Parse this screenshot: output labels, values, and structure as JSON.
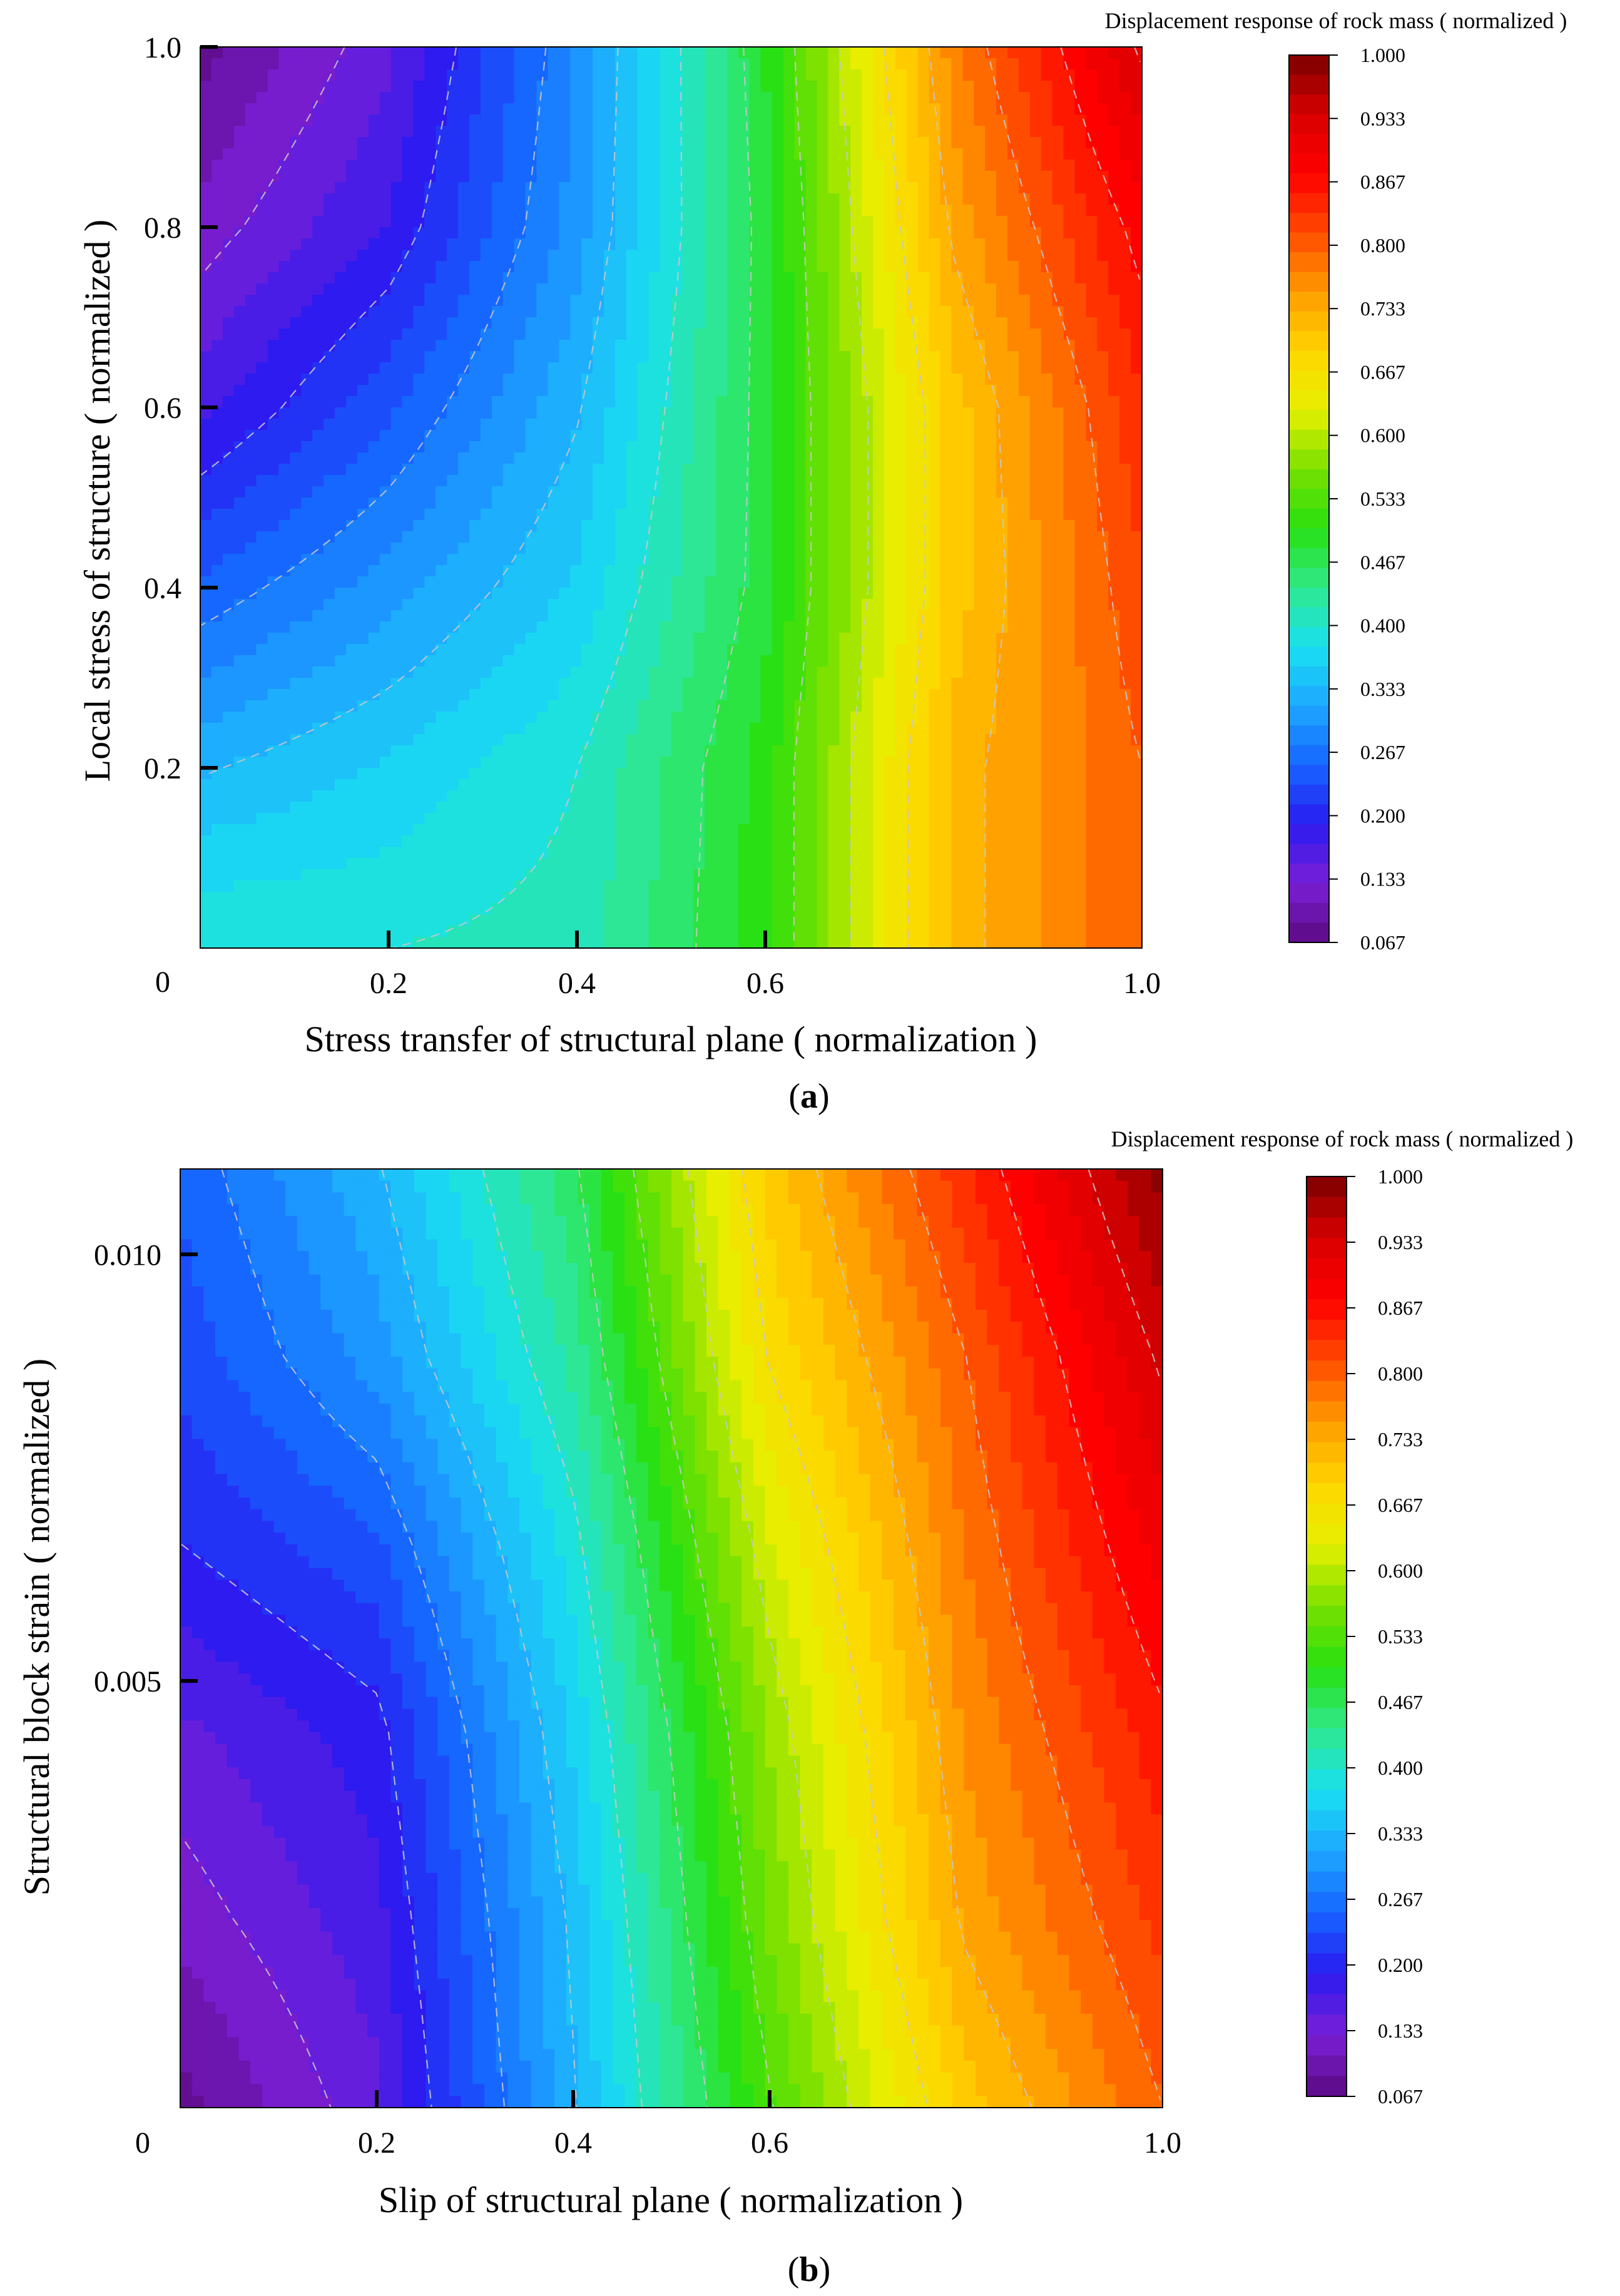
{
  "chart_data": [
    {
      "type": "heatmap",
      "panel_label": "a",
      "xlabel": "Stress transfer of structural plane ( normalization )",
      "ylabel": "Local stress of structure ( normalized )",
      "x_ticks": [
        "0.2",
        "0.4",
        "0.6",
        "1.0"
      ],
      "x_tick_values": [
        0.2,
        0.4,
        0.6,
        1.0
      ],
      "y_ticks": [
        "0.2",
        "0.4",
        "0.6",
        "0.8",
        "1.0"
      ],
      "y_tick_values": [
        0.2,
        0.4,
        0.6,
        0.8,
        1.0
      ],
      "origin_label": "0",
      "xlim": [
        0.0,
        1.0
      ],
      "ylim": [
        0.0,
        1.0
      ],
      "colorbar_title": "Displacement response of rock mass ( normalized )",
      "colorbar_ticks": [
        "1.000",
        "0.933",
        "0.867",
        "0.800",
        "0.733",
        "0.667",
        "0.600",
        "0.533",
        "0.467",
        "0.400",
        "0.333",
        "0.267",
        "0.200",
        "0.133",
        "0.067"
      ],
      "zlim": [
        0.067,
        1.0
      ],
      "z_grid": {
        "x": [
          0.0,
          0.2,
          0.4,
          0.6,
          0.8,
          1.0
        ],
        "y": [
          0.0,
          0.2,
          0.4,
          0.6,
          0.8,
          1.0
        ],
        "z": [
          [
            0.4,
            0.4,
            0.41,
            0.5,
            0.72,
            0.8
          ],
          [
            0.33,
            0.36,
            0.4,
            0.5,
            0.72,
            0.8
          ],
          [
            0.25,
            0.3,
            0.36,
            0.48,
            0.7,
            0.82
          ],
          [
            0.17,
            0.24,
            0.33,
            0.48,
            0.7,
            0.84
          ],
          [
            0.12,
            0.18,
            0.3,
            0.48,
            0.74,
            0.88
          ],
          [
            0.08,
            0.15,
            0.29,
            0.49,
            0.77,
            0.94
          ]
        ]
      }
    },
    {
      "type": "heatmap",
      "panel_label": "b",
      "xlabel": "Slip of structural plane ( normalization )",
      "ylabel": "Structural block strain ( normalized )",
      "x_ticks": [
        "0.2",
        "0.4",
        "0.6",
        "1.0"
      ],
      "x_tick_values": [
        0.2,
        0.4,
        0.6,
        1.0
      ],
      "y_ticks": [
        "0.005",
        "0.010"
      ],
      "y_tick_values": [
        0.005,
        0.01
      ],
      "origin_label": "0",
      "xlim": [
        0.0,
        1.0
      ],
      "ylim": [
        0.0,
        0.011
      ],
      "colorbar_title": "Displacement response of rock mass ( normalized )",
      "colorbar_ticks": [
        "1.000",
        "0.933",
        "0.867",
        "0.800",
        "0.733",
        "0.667",
        "0.600",
        "0.533",
        "0.467",
        "0.400",
        "0.333",
        "0.267",
        "0.200",
        "0.133",
        "0.067"
      ],
      "zlim": [
        0.067,
        1.0
      ],
      "z_grid": {
        "x": [
          0.0,
          0.2,
          0.4,
          0.6,
          0.8,
          1.0
        ],
        "y": [
          0.0,
          0.0022,
          0.0044,
          0.0066,
          0.0088,
          0.011
        ],
        "z": [
          [
            0.08,
            0.15,
            0.33,
            0.53,
            0.7,
            0.8
          ],
          [
            0.12,
            0.17,
            0.34,
            0.56,
            0.74,
            0.83
          ],
          [
            0.15,
            0.19,
            0.36,
            0.58,
            0.76,
            0.86
          ],
          [
            0.2,
            0.24,
            0.39,
            0.62,
            0.78,
            0.9
          ],
          [
            0.23,
            0.3,
            0.43,
            0.67,
            0.8,
            0.94
          ],
          [
            0.25,
            0.33,
            0.46,
            0.7,
            0.84,
            0.99
          ]
        ]
      }
    }
  ],
  "colors": {
    "colormap": [
      "#5c0a82",
      "#7a1fd6",
      "#2a1bf0",
      "#1565ff",
      "#1ea8ff",
      "#19e0f0",
      "#2fe88c",
      "#28e010",
      "#7ae000",
      "#e6f000",
      "#ffd500",
      "#ff9b00",
      "#ff4a00",
      "#ff0000",
      "#d80000",
      "#7a0000"
    ],
    "contour_line": "#c8c8c8"
  }
}
